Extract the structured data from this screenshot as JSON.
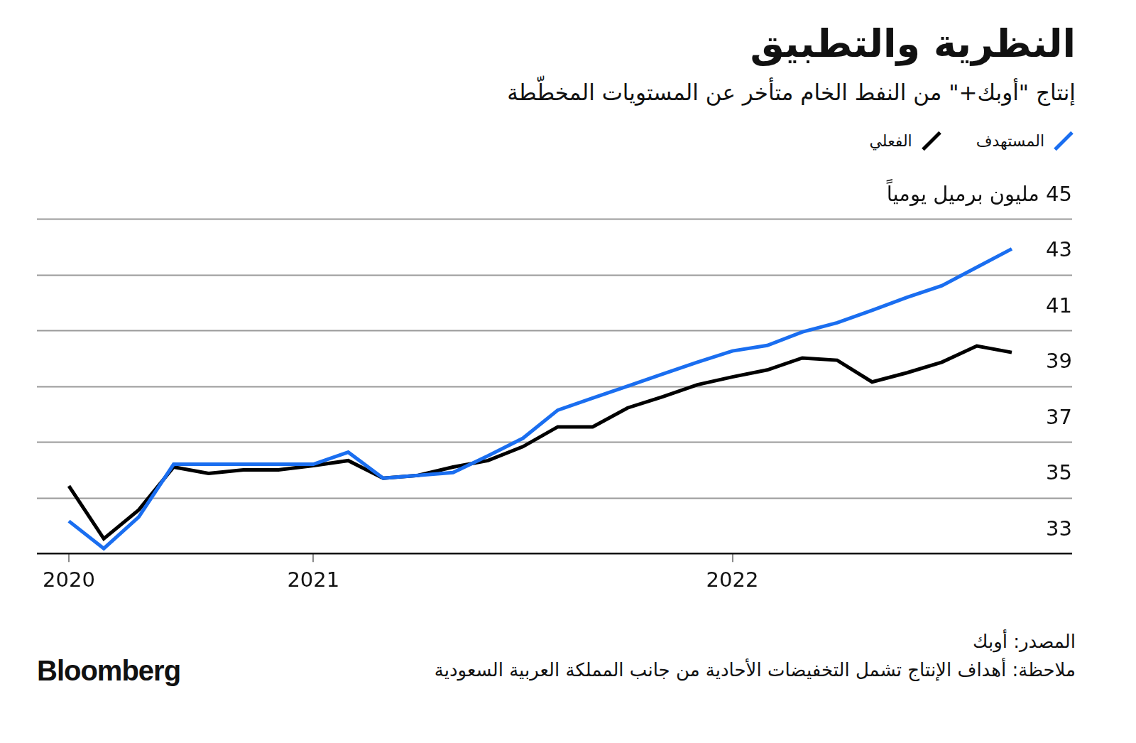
{
  "chart_data": {
    "type": "line",
    "title": "النظرية والتطبيق",
    "subtitle": "إنتاج \"أوبك+\" من النفط الخام متأخر عن المستويات المخطّطة",
    "source": "المصدر: أوبك",
    "note": "ملاحظة: أهداف الإنتاج تشمل التخفيضات الأحادية من جانب المملكة العربية السعودية",
    "credit": "Bloomberg",
    "categories": [
      "2020",
      null,
      null,
      null,
      null,
      null,
      null,
      "2021",
      null,
      null,
      null,
      null,
      null,
      null,
      null,
      null,
      null,
      null,
      null,
      "2022",
      null,
      null,
      null,
      null,
      null,
      null,
      null,
      null
    ],
    "series": [
      {
        "name": "المستهدف",
        "color": "#1a6ef0",
        "values": [
          34.16,
          33.18,
          34.31,
          36.2,
          36.2,
          36.2,
          36.2,
          36.2,
          36.63,
          35.7,
          35.8,
          35.9,
          36.5,
          37.13,
          38.14,
          38.57,
          39.0,
          39.43,
          39.86,
          40.26,
          40.46,
          40.94,
          41.27,
          41.72,
          42.18,
          42.6,
          43.26,
          43.92
        ]
      },
      {
        "name": "الفعلي",
        "color": "#000000",
        "values": [
          35.42,
          33.53,
          34.56,
          36.1,
          35.87,
          36.0,
          36.0,
          36.15,
          36.33,
          35.7,
          35.8,
          36.1,
          36.33,
          36.83,
          37.54,
          37.54,
          38.22,
          38.62,
          39.05,
          39.33,
          39.58,
          40.01,
          39.93,
          39.15,
          39.48,
          39.86,
          40.44,
          40.21
        ]
      }
    ],
    "ylim": [
      33,
      45
    ],
    "yticks": [
      33,
      35,
      37,
      39,
      41,
      43,
      {
        "value": 45,
        "label": "45 مليون برميل يومياً"
      }
    ],
    "grid": true,
    "legend": "top-right"
  }
}
